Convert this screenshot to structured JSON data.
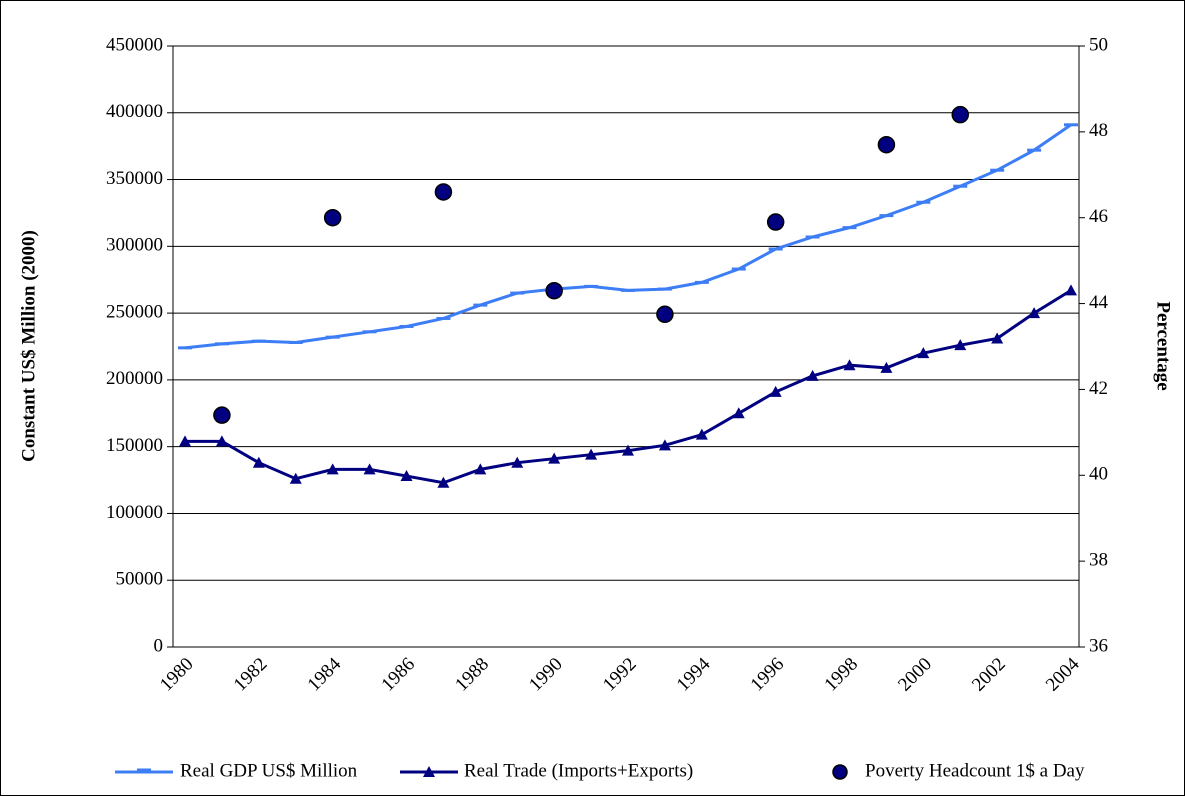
{
  "chart_data": {
    "type": "line",
    "y_label": "Constant US$ Million (2000)",
    "y2_label": "Percentage",
    "categories": [
      "1980",
      null,
      "1982",
      null,
      "1984",
      null,
      "1986",
      null,
      "1988",
      null,
      "1990",
      null,
      "1992",
      null,
      "1994",
      null,
      "1996",
      null,
      "1998",
      null,
      "2000",
      null,
      "2002",
      null,
      "2004"
    ],
    "ylim": [
      0,
      450000
    ],
    "yticks": [
      0,
      50000,
      100000,
      150000,
      200000,
      250000,
      300000,
      350000,
      400000,
      450000
    ],
    "y2lim": [
      36,
      50
    ],
    "y2ticks": [
      36,
      38,
      40,
      42,
      44,
      46,
      48,
      50
    ],
    "grid": true,
    "legend": "bottom",
    "series": [
      {
        "name": "Real GDP US$ Million",
        "color": "#3d7df5",
        "marker": "dash",
        "line": true,
        "values": [
          224000,
          227000,
          229000,
          228000,
          232000,
          236000,
          240000,
          246000,
          256000,
          265000,
          268000,
          270000,
          267000,
          268000,
          273000,
          283000,
          298000,
          307000,
          314000,
          323000,
          333000,
          345000,
          357000,
          372000,
          391000
        ]
      },
      {
        "name": "Real Trade (Imports+Exports)",
        "color": "#000080",
        "marker": "triangle",
        "line": true,
        "values": [
          154000,
          154000,
          138000,
          126000,
          133000,
          133000,
          128000,
          123000,
          133000,
          138000,
          141000,
          144000,
          147000,
          151000,
          159000,
          175000,
          191000,
          203000,
          211000,
          209000,
          220000,
          226000,
          231000,
          250000,
          267000
        ]
      },
      {
        "name": "Poverty Headcount 1$ a Day",
        "color": "#000080",
        "marker": "circle",
        "line": false,
        "axis": "y2",
        "values": [
          null,
          41.4,
          null,
          null,
          46.0,
          null,
          null,
          46.6,
          null,
          null,
          44.3,
          null,
          null,
          43.75,
          null,
          null,
          45.9,
          null,
          null,
          47.7,
          null,
          48.4,
          null,
          null,
          null
        ]
      }
    ]
  }
}
